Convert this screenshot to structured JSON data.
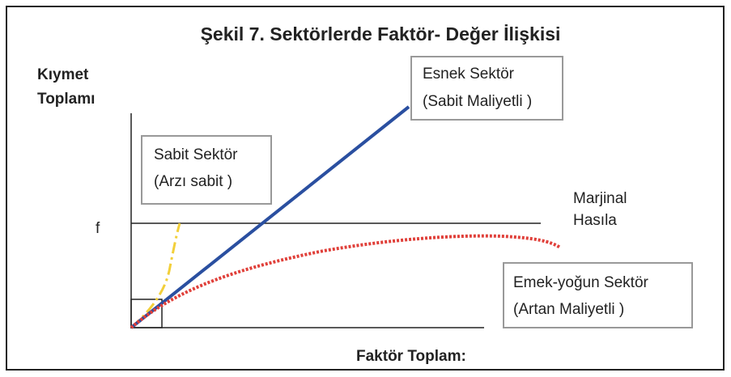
{
  "title": "Şekil 7. Sektörlerde Faktör- Değer İlişkisi",
  "y_axis_label": [
    "Kıymet",
    "Toplamı"
  ],
  "x_axis_label": "Faktör Toplam:",
  "level_label": "f",
  "level_line_label": [
    "Marjinal",
    "Hasıla"
  ],
  "boxes": [
    {
      "lines": [
        "Esnek Sektör",
        "(Sabit Maliyetli )"
      ]
    },
    {
      "lines": [
        "Sabit Sektör",
        "(Arzı sabit )"
      ]
    },
    {
      "lines": [
        "Emek-yoğun Sektör",
        "(Artan Maliyetli )"
      ]
    }
  ]
}
